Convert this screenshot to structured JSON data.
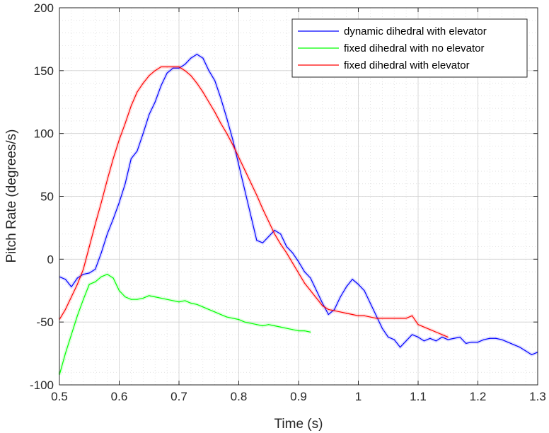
{
  "chart_data": {
    "type": "line",
    "xlabel": "Time (s)",
    "ylabel": "Pitch Rate (degrees/s)",
    "xlim": [
      0.5,
      1.3
    ],
    "ylim": [
      -100,
      200
    ],
    "xticks": [
      0.5,
      0.6,
      0.7,
      0.8,
      0.9,
      1.0,
      1.1,
      1.2,
      1.3
    ],
    "xtick_labels": [
      "0.5",
      "0.6",
      "0.7",
      "0.8",
      "0.9",
      "1",
      "1.1",
      "1.2",
      "1.3"
    ],
    "yticks": [
      -100,
      -50,
      0,
      50,
      100,
      150,
      200
    ],
    "ytick_labels": [
      "-100",
      "-50",
      "0",
      "50",
      "100",
      "150",
      "200"
    ],
    "grid": true,
    "minor_grid": true,
    "legend_position": "top-right",
    "series": [
      {
        "name": "dynamic dihedral with elevator",
        "color": "#0000ff",
        "x": [
          0.5,
          0.51,
          0.52,
          0.53,
          0.54,
          0.55,
          0.56,
          0.57,
          0.58,
          0.59,
          0.6,
          0.61,
          0.62,
          0.63,
          0.64,
          0.65,
          0.66,
          0.67,
          0.68,
          0.69,
          0.7,
          0.71,
          0.72,
          0.73,
          0.74,
          0.75,
          0.76,
          0.77,
          0.78,
          0.79,
          0.8,
          0.81,
          0.82,
          0.83,
          0.84,
          0.85,
          0.86,
          0.87,
          0.88,
          0.89,
          0.9,
          0.91,
          0.92,
          0.93,
          0.94,
          0.95,
          0.96,
          0.97,
          0.98,
          0.99,
          1.0,
          1.01,
          1.02,
          1.03,
          1.04,
          1.05,
          1.06,
          1.07,
          1.08,
          1.09,
          1.1,
          1.11,
          1.12,
          1.13,
          1.14,
          1.15,
          1.16,
          1.17,
          1.18,
          1.19,
          1.2,
          1.21,
          1.22,
          1.23,
          1.24,
          1.25,
          1.26,
          1.27,
          1.28,
          1.29,
          1.3
        ],
        "values": [
          -14,
          -16,
          -22,
          -15,
          -12,
          -11,
          -8,
          5,
          20,
          32,
          45,
          60,
          80,
          86,
          100,
          115,
          125,
          138,
          148,
          152,
          152,
          155,
          160,
          163,
          160,
          150,
          142,
          128,
          112,
          95,
          75,
          55,
          35,
          15,
          13,
          18,
          23,
          20,
          10,
          5,
          -2,
          -10,
          -15,
          -25,
          -35,
          -44,
          -40,
          -30,
          -22,
          -16,
          -20,
          -25,
          -35,
          -45,
          -55,
          -62,
          -64,
          -70,
          -65,
          -60,
          -62,
          -65,
          -63,
          -65,
          -62,
          -64,
          -63,
          -62,
          -67,
          -66,
          -66,
          -64,
          -63,
          -63,
          -64,
          -66,
          -68,
          -70,
          -73,
          -76,
          -74
        ]
      },
      {
        "name": "fixed dihedral with no elevator",
        "color": "#00ff00",
        "x": [
          0.5,
          0.51,
          0.52,
          0.53,
          0.54,
          0.55,
          0.56,
          0.57,
          0.58,
          0.59,
          0.6,
          0.61,
          0.62,
          0.63,
          0.64,
          0.65,
          0.66,
          0.67,
          0.68,
          0.69,
          0.7,
          0.71,
          0.72,
          0.73,
          0.74,
          0.75,
          0.76,
          0.77,
          0.78,
          0.79,
          0.8,
          0.81,
          0.82,
          0.83,
          0.84,
          0.85,
          0.86,
          0.87,
          0.88,
          0.89,
          0.9,
          0.91,
          0.92
        ],
        "values": [
          -92,
          -75,
          -60,
          -45,
          -32,
          -20,
          -18,
          -14,
          -12,
          -15,
          -25,
          -30,
          -32,
          -32,
          -31,
          -29,
          -30,
          -31,
          -32,
          -33,
          -34,
          -33,
          -35,
          -36,
          -38,
          -40,
          -42,
          -44,
          -46,
          -47,
          -48,
          -50,
          -51,
          -52,
          -53,
          -52,
          -53,
          -54,
          -55,
          -56,
          -57,
          -57,
          -58
        ]
      },
      {
        "name": "fixed dihedral with elevator",
        "color": "#ff0000",
        "x": [
          0.5,
          0.51,
          0.52,
          0.53,
          0.54,
          0.55,
          0.56,
          0.57,
          0.58,
          0.59,
          0.6,
          0.61,
          0.62,
          0.63,
          0.64,
          0.65,
          0.66,
          0.67,
          0.68,
          0.69,
          0.7,
          0.71,
          0.72,
          0.73,
          0.74,
          0.75,
          0.76,
          0.77,
          0.78,
          0.79,
          0.8,
          0.81,
          0.82,
          0.83,
          0.84,
          0.85,
          0.86,
          0.87,
          0.88,
          0.89,
          0.9,
          0.91,
          0.92,
          0.93,
          0.94,
          0.95,
          0.96,
          0.97,
          0.98,
          0.99,
          1.0,
          1.01,
          1.02,
          1.03,
          1.04,
          1.05,
          1.06,
          1.07,
          1.08,
          1.09,
          1.1,
          1.11,
          1.12,
          1.13,
          1.14,
          1.15
        ],
        "values": [
          -48,
          -40,
          -30,
          -20,
          -8,
          10,
          28,
          45,
          63,
          80,
          95,
          108,
          122,
          133,
          140,
          146,
          150,
          153,
          153,
          153,
          153,
          150,
          146,
          140,
          133,
          125,
          117,
          108,
          100,
          91,
          81,
          71,
          61,
          51,
          40,
          30,
          20,
          12,
          5,
          -3,
          -11,
          -19,
          -25,
          -31,
          -37,
          -40,
          -41,
          -42,
          -43,
          -44,
          -45,
          -45,
          -46,
          -47,
          -47,
          -47,
          -47,
          -47,
          -47,
          -45,
          -52,
          -54,
          -56,
          -58,
          -60,
          -62
        ]
      }
    ]
  }
}
